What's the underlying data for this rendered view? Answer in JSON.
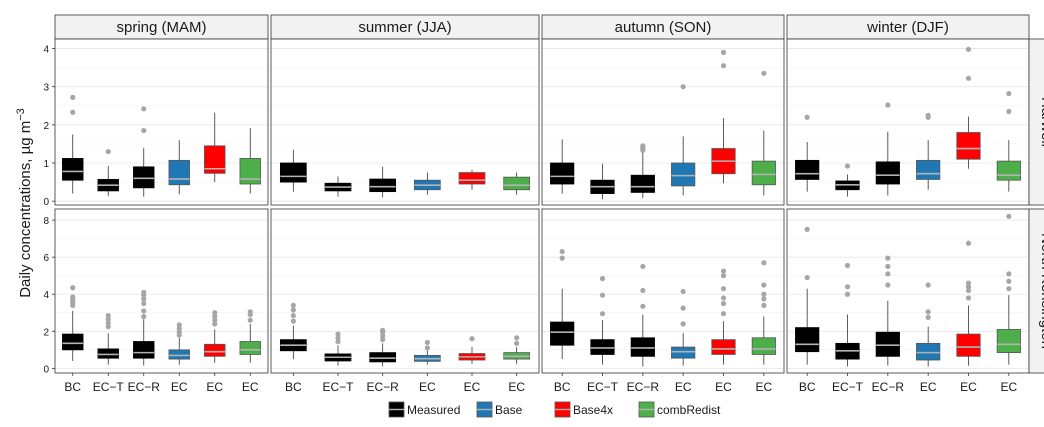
{
  "chart_data": {
    "type": "boxplot",
    "ylabel": "Daily concentrations, µg m",
    "ylabel_superscript": "−3",
    "seasons": [
      "spring (MAM)",
      "summer (JJA)",
      "autumn (SON)",
      "winter (DJF)"
    ],
    "sites": [
      "Harwell",
      "North Kensington"
    ],
    "categories": [
      "BC",
      "EC−T",
      "EC−R",
      "EC",
      "EC",
      "EC"
    ],
    "category_series": [
      "Measured",
      "Measured",
      "Measured",
      "Base",
      "Base4x",
      "combRedist"
    ],
    "series_colors": {
      "Measured": "#000000",
      "Base": "#1f78b4",
      "Base4x": "#ff0000",
      "combRedist": "#4daf4a"
    },
    "legend": [
      {
        "name": "Measured",
        "color": "#000000"
      },
      {
        "name": "Base",
        "color": "#1f78b4"
      },
      {
        "name": "Base4x",
        "color": "#ff0000"
      },
      {
        "name": "combRedist",
        "color": "#4daf4a"
      }
    ],
    "legend_position": "bottom",
    "grid": true,
    "rows": [
      {
        "site": "Harwell",
        "ylim": [
          -0.1,
          4.25
        ],
        "yticks": [
          0,
          1,
          2,
          3,
          4
        ],
        "panels": [
          {
            "season": "spring (MAM)",
            "boxes": [
              {
                "q1": 0.55,
                "med": 0.78,
                "q3": 1.12,
                "lo": 0.2,
                "hi": 1.75,
                "out": [
                  2.33,
                  2.72
                ]
              },
              {
                "q1": 0.27,
                "med": 0.42,
                "q3": 0.57,
                "lo": 0.13,
                "hi": 0.92,
                "out": [
                  1.3
                ]
              },
              {
                "q1": 0.35,
                "med": 0.6,
                "q3": 0.9,
                "lo": 0.12,
                "hi": 1.4,
                "out": [
                  1.85,
                  2.42
                ]
              },
              {
                "q1": 0.43,
                "med": 0.58,
                "q3": 1.07,
                "lo": 0.18,
                "hi": 1.6,
                "out": []
              },
              {
                "q1": 0.73,
                "med": 0.85,
                "q3": 1.45,
                "lo": 0.5,
                "hi": 2.32,
                "out": []
              },
              {
                "q1": 0.45,
                "med": 0.58,
                "q3": 1.12,
                "lo": 0.2,
                "hi": 1.92,
                "out": []
              }
            ]
          },
          {
            "season": "summer (JJA)",
            "boxes": [
              {
                "q1": 0.5,
                "med": 0.65,
                "q3": 1.0,
                "lo": 0.25,
                "hi": 1.35,
                "out": []
              },
              {
                "q1": 0.27,
                "med": 0.37,
                "q3": 0.47,
                "lo": 0.12,
                "hi": 0.65,
                "out": []
              },
              {
                "q1": 0.25,
                "med": 0.38,
                "q3": 0.58,
                "lo": 0.1,
                "hi": 0.9,
                "out": []
              },
              {
                "q1": 0.3,
                "med": 0.42,
                "q3": 0.55,
                "lo": 0.17,
                "hi": 0.75,
                "out": []
              },
              {
                "q1": 0.45,
                "med": 0.55,
                "q3": 0.75,
                "lo": 0.3,
                "hi": 0.82,
                "out": []
              },
              {
                "q1": 0.3,
                "med": 0.42,
                "q3": 0.63,
                "lo": 0.17,
                "hi": 0.75,
                "out": []
              }
            ]
          },
          {
            "season": "autumn (SON)",
            "boxes": [
              {
                "q1": 0.45,
                "med": 0.65,
                "q3": 1.0,
                "lo": 0.2,
                "hi": 1.62,
                "out": []
              },
              {
                "q1": 0.2,
                "med": 0.38,
                "q3": 0.55,
                "lo": 0.05,
                "hi": 0.98,
                "out": []
              },
              {
                "q1": 0.23,
                "med": 0.38,
                "q3": 0.68,
                "lo": 0.08,
                "hi": 1.3,
                "out": [
                  1.33,
                  1.38,
                  1.42,
                  1.45
                ]
              },
              {
                "q1": 0.4,
                "med": 0.67,
                "q3": 1.0,
                "lo": 0.15,
                "hi": 1.7,
                "out": [
                  3.0
                ]
              },
              {
                "q1": 0.72,
                "med": 1.05,
                "q3": 1.38,
                "lo": 0.47,
                "hi": 2.18,
                "out": [
                  3.55,
                  3.9
                ]
              },
              {
                "q1": 0.43,
                "med": 0.7,
                "q3": 1.05,
                "lo": 0.15,
                "hi": 1.85,
                "out": [
                  3.35
                ]
              }
            ]
          },
          {
            "season": "winter (DJF)",
            "boxes": [
              {
                "q1": 0.57,
                "med": 0.72,
                "q3": 1.07,
                "lo": 0.25,
                "hi": 1.55,
                "out": [
                  2.2
                ]
              },
              {
                "q1": 0.3,
                "med": 0.43,
                "q3": 0.53,
                "lo": 0.12,
                "hi": 0.7,
                "out": [
                  0.92
                ]
              },
              {
                "q1": 0.45,
                "med": 0.68,
                "q3": 1.03,
                "lo": 0.15,
                "hi": 1.82,
                "out": [
                  2.52
                ]
              },
              {
                "q1": 0.57,
                "med": 0.72,
                "q3": 1.07,
                "lo": 0.3,
                "hi": 1.6,
                "out": [
                  2.2,
                  2.25
                ]
              },
              {
                "q1": 1.1,
                "med": 1.38,
                "q3": 1.8,
                "lo": 0.85,
                "hi": 2.22,
                "out": [
                  3.22,
                  3.98
                ]
              },
              {
                "q1": 0.55,
                "med": 0.68,
                "q3": 1.05,
                "lo": 0.25,
                "hi": 1.6,
                "out": [
                  2.35,
                  2.82
                ]
              }
            ]
          }
        ]
      },
      {
        "site": "North Kensington",
        "ylim": [
          -0.25,
          8.6
        ],
        "yticks": [
          0,
          2,
          4,
          6,
          8
        ],
        "panels": [
          {
            "season": "spring (MAM)",
            "boxes": [
              {
                "q1": 1.0,
                "med": 1.35,
                "q3": 1.85,
                "lo": 0.4,
                "hi": 3.1,
                "out": [
                  3.4,
                  3.55,
                  3.7,
                  3.85,
                  4.35
                ]
              },
              {
                "q1": 0.55,
                "med": 0.75,
                "q3": 1.05,
                "lo": 0.2,
                "hi": 1.9,
                "out": [
                  2.25,
                  2.45,
                  2.65,
                  2.85
                ]
              },
              {
                "q1": 0.55,
                "med": 0.85,
                "q3": 1.45,
                "lo": 0.15,
                "hi": 2.65,
                "out": [
                  2.8,
                  3.1,
                  3.5,
                  3.75,
                  3.95,
                  4.1
                ]
              },
              {
                "q1": 0.5,
                "med": 0.7,
                "q3": 1.0,
                "lo": 0.2,
                "hi": 1.65,
                "out": [
                  1.8,
                  1.95,
                  2.15,
                  2.35
                ]
              },
              {
                "q1": 0.65,
                "med": 0.9,
                "q3": 1.3,
                "lo": 0.3,
                "hi": 2.1,
                "out": [
                  2.4,
                  2.6,
                  2.8,
                  3.0
                ]
              },
              {
                "q1": 0.75,
                "med": 1.0,
                "q3": 1.45,
                "lo": 0.3,
                "hi": 2.4,
                "out": [
                  2.6,
                  2.9,
                  3.05
                ]
              }
            ]
          },
          {
            "season": "summer (JJA)",
            "boxes": [
              {
                "q1": 0.95,
                "med": 1.25,
                "q3": 1.55,
                "lo": 0.5,
                "hi": 2.3,
                "out": [
                  2.55,
                  2.85,
                  3.15,
                  3.4
                ]
              },
              {
                "q1": 0.4,
                "med": 0.6,
                "q3": 0.78,
                "lo": 0.15,
                "hi": 1.25,
                "out": [
                  1.45,
                  1.65,
                  1.85
                ]
              },
              {
                "q1": 0.35,
                "med": 0.55,
                "q3": 0.85,
                "lo": 0.1,
                "hi": 1.35,
                "out": [
                  1.55,
                  1.75,
                  1.95,
                  2.05
                ]
              },
              {
                "q1": 0.38,
                "med": 0.52,
                "q3": 0.7,
                "lo": 0.2,
                "hi": 0.95,
                "out": [
                  1.1,
                  1.4
                ]
              },
              {
                "q1": 0.45,
                "med": 0.62,
                "q3": 0.8,
                "lo": 0.25,
                "hi": 1.15,
                "out": [
                  1.6
                ]
              },
              {
                "q1": 0.5,
                "med": 0.65,
                "q3": 0.85,
                "lo": 0.25,
                "hi": 1.15,
                "out": [
                  1.35,
                  1.65
                ]
              }
            ]
          },
          {
            "season": "autumn (SON)",
            "boxes": [
              {
                "q1": 1.25,
                "med": 1.95,
                "q3": 2.5,
                "lo": 0.5,
                "hi": 4.3,
                "out": [
                  5.95,
                  6.3
                ]
              },
              {
                "q1": 0.75,
                "med": 1.1,
                "q3": 1.55,
                "lo": 0.2,
                "hi": 2.6,
                "out": [
                  2.95,
                  3.95,
                  4.85
                ]
              },
              {
                "q1": 0.65,
                "med": 1.1,
                "q3": 1.65,
                "lo": 0.1,
                "hi": 2.9,
                "out": [
                  3.35,
                  4.2,
                  5.5
                ]
              },
              {
                "q1": 0.55,
                "med": 0.9,
                "q3": 1.15,
                "lo": 0.15,
                "hi": 1.9,
                "out": [
                  2.4,
                  3.25,
                  4.15
                ]
              },
              {
                "q1": 0.75,
                "med": 1.05,
                "q3": 1.55,
                "lo": 0.2,
                "hi": 2.55,
                "out": [
                  2.95,
                  3.5,
                  3.8,
                  4.3,
                  5.0,
                  5.25
                ]
              },
              {
                "q1": 0.75,
                "med": 1.05,
                "q3": 1.65,
                "lo": 0.2,
                "hi": 2.8,
                "out": [
                  3.4,
                  3.75,
                  4.0,
                  4.5,
                  5.7
                ]
              }
            ]
          },
          {
            "season": "winter (DJF)",
            "boxes": [
              {
                "q1": 0.9,
                "med": 1.3,
                "q3": 2.2,
                "lo": 0.2,
                "hi": 4.3,
                "out": [
                  4.9,
                  7.5
                ]
              },
              {
                "q1": 0.5,
                "med": 0.95,
                "q3": 1.35,
                "lo": 0.1,
                "hi": 2.9,
                "out": [
                  4.0,
                  4.4,
                  5.55
                ]
              },
              {
                "q1": 0.65,
                "med": 1.25,
                "q3": 1.95,
                "lo": 0.15,
                "hi": 3.65,
                "out": [
                  4.5,
                  5.1,
                  5.5,
                  5.95
                ]
              },
              {
                "q1": 0.45,
                "med": 0.85,
                "q3": 1.35,
                "lo": 0.1,
                "hi": 2.25,
                "out": [
                  2.75,
                  3.05,
                  4.5
                ]
              },
              {
                "q1": 0.65,
                "med": 1.15,
                "q3": 1.85,
                "lo": 0.15,
                "hi": 3.4,
                "out": [
                  3.8,
                  4.2,
                  4.4,
                  4.6,
                  6.75
                ]
              },
              {
                "q1": 0.85,
                "med": 1.3,
                "q3": 2.1,
                "lo": 0.2,
                "hi": 3.95,
                "out": [
                  4.3,
                  4.7,
                  5.1,
                  8.2
                ]
              }
            ]
          }
        ]
      }
    ]
  }
}
